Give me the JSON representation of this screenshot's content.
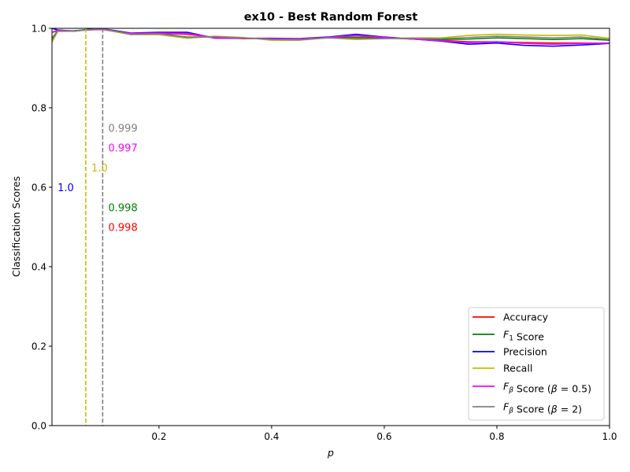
{
  "chart_data": {
    "type": "line",
    "title": "ex10 - Best Random Forest",
    "xlabel": "p",
    "ylabel": "Classification Scores",
    "xlim": [
      0.01,
      1.0
    ],
    "ylim": [
      0.0,
      1.0
    ],
    "xticks": [
      0.2,
      0.4,
      0.6,
      0.8,
      1.0
    ],
    "xtick_labels": [
      "0.2",
      "0.4",
      "0.6",
      "0.8",
      "1.0"
    ],
    "yticks": [
      0.0,
      0.2,
      0.4,
      0.6,
      0.8,
      1.0
    ],
    "ytick_labels": [
      "0.0",
      "0.2",
      "0.4",
      "0.6",
      "0.8",
      "1.0"
    ],
    "grid": false,
    "legend_position": "lower-right",
    "series": [
      {
        "name": "Accuracy",
        "color": "#ff0000",
        "x": [
          0.01,
          0.02,
          0.05,
          0.07,
          0.1,
          0.15,
          0.2,
          0.25,
          0.3,
          0.35,
          0.4,
          0.45,
          0.5,
          0.55,
          0.6,
          0.65,
          0.7,
          0.75,
          0.8,
          0.85,
          0.9,
          0.95,
          1.0
        ],
        "y": [
          0.99,
          0.993,
          0.994,
          0.996,
          0.998,
          0.987,
          0.988,
          0.985,
          0.977,
          0.974,
          0.974,
          0.973,
          0.977,
          0.981,
          0.976,
          0.973,
          0.97,
          0.966,
          0.966,
          0.964,
          0.963,
          0.963,
          0.962
        ]
      },
      {
        "name": "F1 Score",
        "color": "#008000",
        "x": [
          0.01,
          0.02,
          0.05,
          0.07,
          0.1,
          0.15,
          0.2,
          0.25,
          0.3,
          0.35,
          0.4,
          0.45,
          0.5,
          0.55,
          0.6,
          0.65,
          0.7,
          0.75,
          0.8,
          0.85,
          0.9,
          0.95,
          1.0
        ],
        "y": [
          0.975,
          0.993,
          0.994,
          0.996,
          0.998,
          0.986,
          0.987,
          0.978,
          0.978,
          0.976,
          0.973,
          0.972,
          0.977,
          0.977,
          0.975,
          0.974,
          0.972,
          0.973,
          0.976,
          0.974,
          0.972,
          0.974,
          0.97
        ]
      },
      {
        "name": "Precision",
        "color": "#0000ff",
        "x": [
          0.01,
          0.02,
          0.05,
          0.07,
          0.1,
          0.15,
          0.2,
          0.25,
          0.3,
          0.35,
          0.4,
          0.45,
          0.5,
          0.55,
          0.6,
          0.65,
          0.7,
          0.75,
          0.8,
          0.85,
          0.9,
          0.95,
          1.0
        ],
        "y": [
          1.0,
          0.996,
          0.993,
          0.997,
          0.999,
          0.988,
          0.99,
          0.99,
          0.975,
          0.975,
          0.975,
          0.974,
          0.978,
          0.985,
          0.978,
          0.973,
          0.968,
          0.96,
          0.963,
          0.957,
          0.955,
          0.958,
          0.962
        ]
      },
      {
        "name": "Recall",
        "color": "#bfbf00",
        "x": [
          0.01,
          0.02,
          0.05,
          0.07,
          0.1,
          0.15,
          0.2,
          0.25,
          0.3,
          0.35,
          0.4,
          0.45,
          0.5,
          0.55,
          0.6,
          0.65,
          0.7,
          0.75,
          0.8,
          0.85,
          0.9,
          0.95,
          1.0
        ],
        "y": [
          0.965,
          0.992,
          0.993,
          0.996,
          0.997,
          0.984,
          0.984,
          0.975,
          0.98,
          0.977,
          0.97,
          0.97,
          0.976,
          0.972,
          0.974,
          0.976,
          0.976,
          0.982,
          0.985,
          0.983,
          0.982,
          0.983,
          0.975
        ]
      },
      {
        "name": "Fβ Score (β = 0.5)",
        "color": "#ff00ff",
        "x": [
          0.01,
          0.02,
          0.05,
          0.07,
          0.1,
          0.15,
          0.2,
          0.25,
          0.3,
          0.35,
          0.4,
          0.45,
          0.5,
          0.55,
          0.6,
          0.65,
          0.7,
          0.75,
          0.8,
          0.85,
          0.9,
          0.95,
          1.0
        ],
        "y": [
          0.99,
          0.995,
          0.993,
          0.996,
          0.997,
          0.987,
          0.988,
          0.987,
          0.976,
          0.975,
          0.974,
          0.973,
          0.977,
          0.982,
          0.977,
          0.973,
          0.969,
          0.964,
          0.966,
          0.962,
          0.96,
          0.962,
          0.963
        ]
      },
      {
        "name": "Fβ Score (β = 2)",
        "color": "#808080",
        "x": [
          0.01,
          0.02,
          0.05,
          0.07,
          0.1,
          0.15,
          0.2,
          0.25,
          0.3,
          0.35,
          0.4,
          0.45,
          0.5,
          0.55,
          0.6,
          0.65,
          0.7,
          0.75,
          0.8,
          0.85,
          0.9,
          0.95,
          1.0
        ],
        "y": [
          0.97,
          0.993,
          0.993,
          0.996,
          0.999,
          0.985,
          0.986,
          0.977,
          0.979,
          0.976,
          0.972,
          0.971,
          0.976,
          0.974,
          0.974,
          0.975,
          0.974,
          0.977,
          0.98,
          0.978,
          0.976,
          0.978,
          0.972
        ]
      }
    ],
    "vlines": [
      {
        "x": 0.07,
        "color": "#bfbf00",
        "style": "dashed"
      },
      {
        "x": 0.1,
        "color": "#808080",
        "style": "dashed"
      }
    ],
    "annotations": [
      {
        "text": "0.999",
        "x": 0.11,
        "y": 0.75,
        "color": "#808080"
      },
      {
        "text": "0.997",
        "x": 0.11,
        "y": 0.7,
        "color": "#ff00ff"
      },
      {
        "text": "1.0",
        "x": 0.08,
        "y": 0.65,
        "color": "#bfbf00"
      },
      {
        "text": "1.0",
        "x": 0.02,
        "y": 0.6,
        "color": "#0000ff"
      },
      {
        "text": "0.998",
        "x": 0.11,
        "y": 0.55,
        "color": "#008000"
      },
      {
        "text": "0.998",
        "x": 0.11,
        "y": 0.5,
        "color": "#ff0000"
      }
    ],
    "legend": [
      {
        "parts": [
          {
            "t": "Accuracy",
            "i": false
          }
        ],
        "color": "#ff0000"
      },
      {
        "parts": [
          {
            "t": "F",
            "i": true
          },
          {
            "t": "1",
            "sub": true,
            "i": false
          },
          {
            "t": " Score",
            "i": false
          }
        ],
        "color": "#008000"
      },
      {
        "parts": [
          {
            "t": "Precision",
            "i": false
          }
        ],
        "color": "#0000ff"
      },
      {
        "parts": [
          {
            "t": "Recall",
            "i": false
          }
        ],
        "color": "#bfbf00"
      },
      {
        "parts": [
          {
            "t": "F",
            "i": true
          },
          {
            "t": "β",
            "sub": true,
            "i": true
          },
          {
            "t": " Score (",
            "i": false
          },
          {
            "t": "β",
            "i": true
          },
          {
            "t": " = 0.5)",
            "i": false
          }
        ],
        "color": "#ff00ff"
      },
      {
        "parts": [
          {
            "t": "F",
            "i": true
          },
          {
            "t": "β",
            "sub": true,
            "i": true
          },
          {
            "t": " Score (",
            "i": false
          },
          {
            "t": "β",
            "i": true
          },
          {
            "t": " = 2)",
            "i": false
          }
        ],
        "color": "#808080"
      }
    ]
  }
}
